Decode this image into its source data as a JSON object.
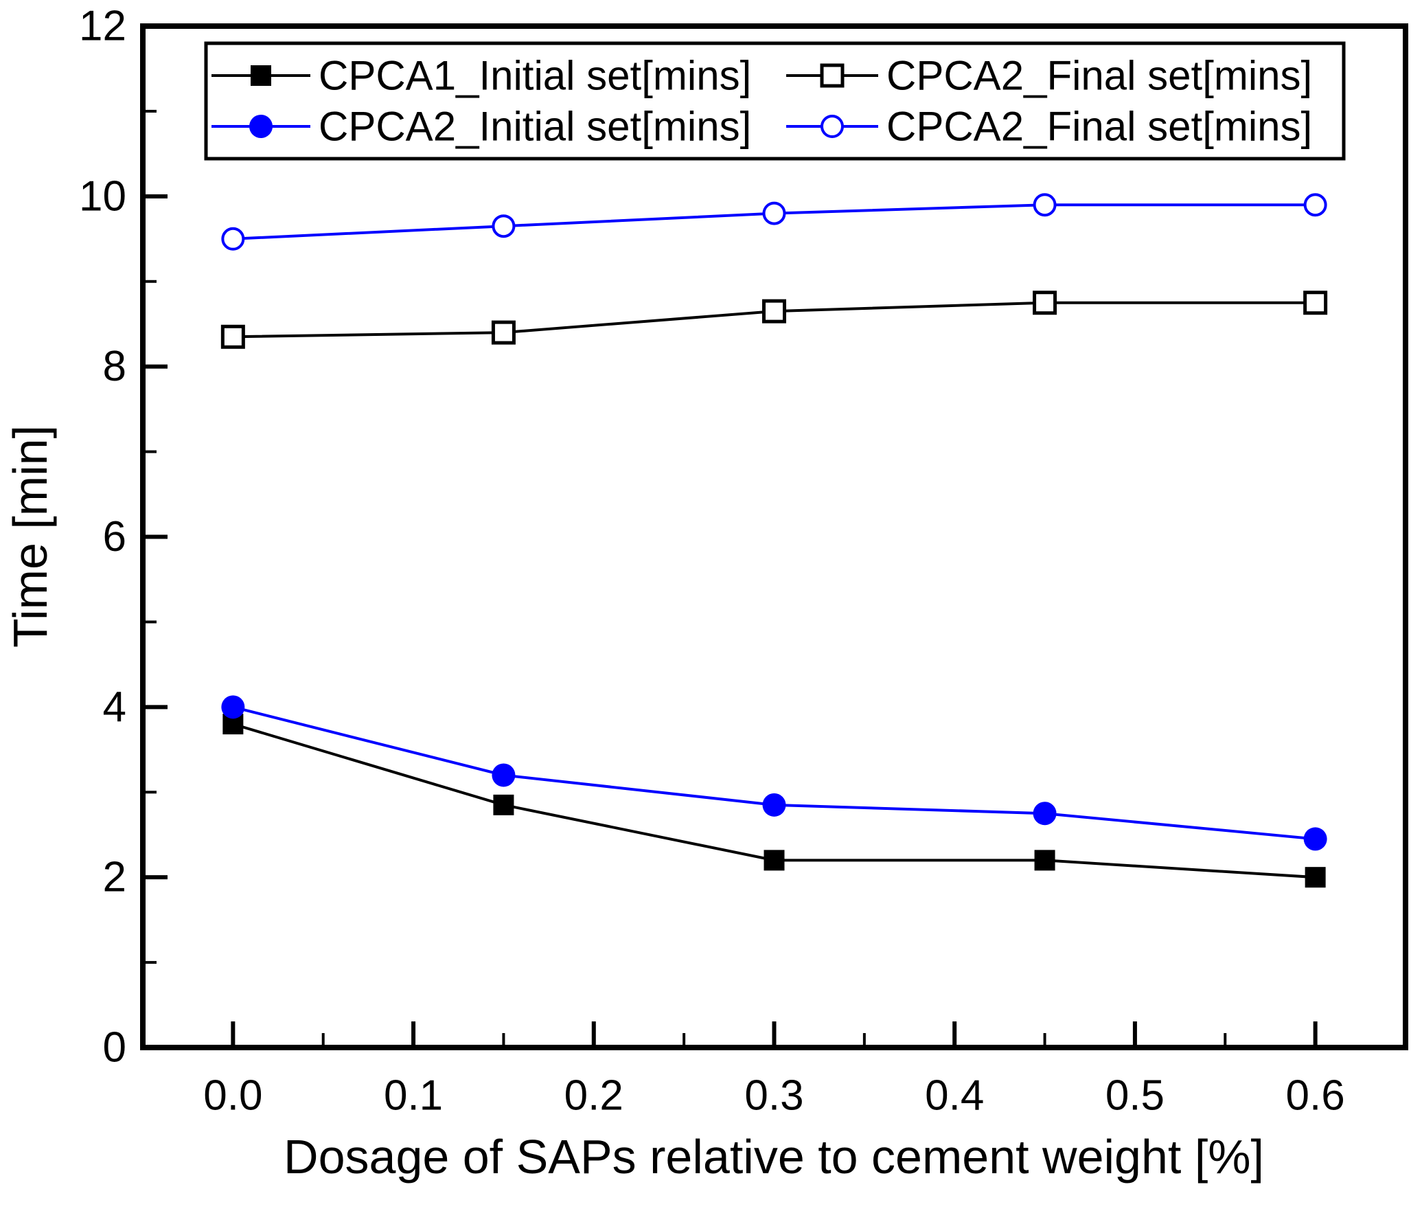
{
  "figure": {
    "background": "#ffffff",
    "axis_color": "#000000",
    "accent_blue": "#0000ff"
  },
  "chart_data": {
    "type": "line",
    "title": "",
    "xlabel": "Dosage of SAPs relative to cement weight [%]",
    "ylabel": "Time [min]",
    "xlim": [
      -0.05,
      0.65
    ],
    "ylim": [
      0,
      12
    ],
    "x_major_ticks": [
      0.0,
      0.1,
      0.2,
      0.3,
      0.4,
      0.5,
      0.6
    ],
    "x_tick_labels": [
      "0.0",
      "0.1",
      "0.2",
      "0.3",
      "0.4",
      "0.5",
      "0.6"
    ],
    "x_minor_step": 0.05,
    "y_major_ticks": [
      0,
      2,
      4,
      6,
      8,
      10,
      12
    ],
    "y_tick_labels": [
      "0",
      "2",
      "4",
      "6",
      "8",
      "10",
      "12"
    ],
    "y_minor_step": 1,
    "grid": false,
    "legend_position": "top-inside",
    "legend_columns": 2,
    "x": [
      0.0,
      0.15,
      0.3,
      0.45,
      0.6
    ],
    "series": [
      {
        "name": "CPCA1_Initial set[mins]",
        "color": "#000000",
        "marker": "square",
        "fill": "filled",
        "values": [
          3.8,
          2.85,
          2.2,
          2.2,
          2.0
        ]
      },
      {
        "name": "CPCA2_Final set[mins]",
        "color": "#000000",
        "marker": "square",
        "fill": "open",
        "values": [
          8.35,
          8.4,
          8.65,
          8.75,
          8.75
        ]
      },
      {
        "name": "CPCA2_Initial set[mins]",
        "color": "#0000ff",
        "marker": "circle",
        "fill": "filled",
        "values": [
          4.0,
          3.2,
          2.85,
          2.75,
          2.45
        ]
      },
      {
        "name": "CPCA2_Final set[mins]",
        "color": "#0000ff",
        "marker": "circle",
        "fill": "open",
        "values": [
          9.5,
          9.65,
          9.8,
          9.9,
          9.9
        ]
      }
    ]
  }
}
